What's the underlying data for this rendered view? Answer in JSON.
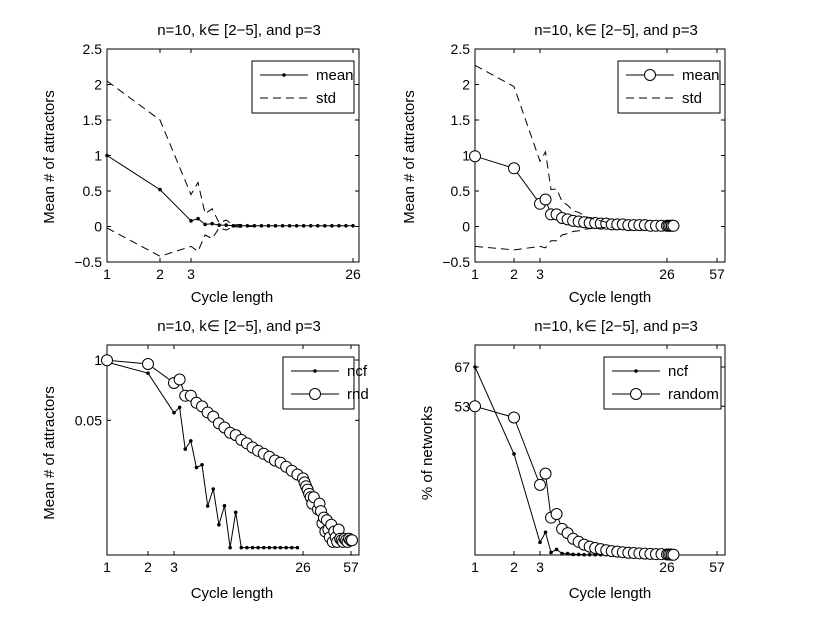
{
  "chart_data": [
    {
      "type": "line",
      "title": "n=10, k∈ [2−5], and p=3",
      "xlabel": "Cycle length",
      "ylabel": "Mean # of attractors",
      "xlim": [
        1,
        26
      ],
      "ylim": [
        -0.5,
        2.5
      ],
      "xticks": [
        "1",
        "2",
        "3",
        "26"
      ],
      "yticks": [
        "−0.5",
        "0",
        "0.5",
        "1",
        "1.5",
        "2",
        "2.5"
      ],
      "legend_position": "top-right",
      "series": [
        {
          "name": "mean",
          "style": "solid-dot",
          "x": [
            1,
            2,
            3,
            4,
            5,
            6,
            7,
            8,
            9,
            10,
            11,
            12,
            13,
            14,
            15,
            16,
            17,
            18,
            19,
            20,
            21,
            22,
            23,
            24,
            25,
            26
          ],
          "y": [
            1.0,
            0.52,
            0.08,
            0.11,
            0.03,
            0.04,
            0.02,
            0.02,
            0.01,
            0.01,
            0.01,
            0.01,
            0.01,
            0.01,
            0.01,
            0.01,
            0.01,
            0.01,
            0.01,
            0.01,
            0.01,
            0.01,
            0.01,
            0.01,
            0.01,
            0.01
          ]
        },
        {
          "name": "std",
          "style": "dashed",
          "x": [
            1,
            2,
            3,
            4,
            5,
            6,
            7,
            8,
            9,
            10,
            11,
            12
          ],
          "y": [
            2.05,
            1.5,
            0.45,
            0.62,
            0.18,
            0.25,
            0.05,
            0.09,
            0.02,
            0.03,
            0.01,
            0.0
          ]
        },
        {
          "name": "",
          "style": "dashed",
          "x": [
            1,
            2,
            3,
            4,
            5,
            6,
            7,
            8,
            9,
            10,
            11,
            12
          ],
          "y": [
            -0.02,
            -0.42,
            -0.28,
            -0.35,
            -0.12,
            -0.17,
            -0.02,
            -0.05,
            0.0,
            -0.01,
            0.0,
            0.0
          ]
        }
      ]
    },
    {
      "type": "line",
      "title": "n=10, k∈ [2−5], and p=3",
      "xlabel": "Cycle length",
      "ylabel": "Mean # of attractors",
      "xlim": [
        1,
        57
      ],
      "ylim": [
        -0.5,
        2.5
      ],
      "xticks": [
        "1",
        "2",
        "3",
        "26",
        "57"
      ],
      "yticks": [
        "−0.5",
        "0",
        "0.5",
        "1",
        "1.5",
        "2",
        "2.5"
      ],
      "legend_position": "top-right",
      "series": [
        {
          "name": "mean",
          "style": "solid-circle",
          "x": [
            1,
            2,
            3,
            4,
            5,
            6,
            7,
            8,
            9,
            10,
            11,
            12,
            13,
            14,
            15,
            16,
            17,
            18,
            19,
            20,
            21,
            22,
            23,
            24,
            25,
            26,
            27,
            28,
            29,
            30
          ],
          "y": [
            0.99,
            0.82,
            0.32,
            0.38,
            0.17,
            0.17,
            0.12,
            0.1,
            0.08,
            0.07,
            0.06,
            0.05,
            0.05,
            0.04,
            0.04,
            0.03,
            0.03,
            0.03,
            0.02,
            0.02,
            0.02,
            0.02,
            0.01,
            0.01,
            0.01,
            0.01,
            0.01,
            0.01,
            0.01,
            0.01
          ]
        },
        {
          "name": "std",
          "style": "dashed",
          "x": [
            1,
            2,
            3,
            4,
            5,
            6,
            7,
            8,
            9,
            10,
            11,
            12,
            13,
            14,
            15,
            16
          ],
          "y": [
            2.27,
            1.97,
            0.92,
            1.05,
            0.52,
            0.53,
            0.35,
            0.3,
            0.22,
            0.2,
            0.15,
            0.12,
            0.1,
            0.08,
            0.06,
            0.05
          ]
        },
        {
          "name": "",
          "style": "dashed",
          "x": [
            1,
            2,
            3,
            4,
            5,
            6,
            7,
            8,
            9,
            10,
            11,
            12,
            13,
            14,
            15,
            16
          ],
          "y": [
            -0.28,
            -0.33,
            -0.28,
            -0.3,
            -0.2,
            -0.2,
            -0.12,
            -0.1,
            -0.07,
            -0.06,
            -0.04,
            -0.03,
            -0.02,
            -0.02,
            -0.01,
            -0.01
          ]
        }
      ]
    },
    {
      "type": "line",
      "title": "n=10, k∈ [2−5], and p=3",
      "xlabel": "Cycle length",
      "ylabel": "Mean # of attractors",
      "xlim": [
        1,
        57
      ],
      "yscale": "log",
      "xticks": [
        "1",
        "2",
        "3",
        "26",
        "57"
      ],
      "yticks": [
        "1",
        "0.05"
      ],
      "legend_position": "top-right",
      "series": [
        {
          "name": "ncf",
          "style": "solid-dot",
          "x": [
            1,
            2,
            3,
            4,
            5,
            6,
            7,
            8,
            9,
            10,
            11,
            12,
            13,
            14,
            15,
            16,
            17,
            18,
            19,
            20,
            21,
            22,
            23,
            24,
            25
          ],
          "y": [
            0.9,
            0.52,
            0.073,
            0.095,
            0.012,
            0.018,
            0.0048,
            0.0055,
            0.00071,
            0.00165,
            0.00028,
            0.00072,
            9e-05,
            0.00052,
            9e-05,
            9e-05,
            9e-05,
            9e-05,
            9e-05,
            9e-05,
            9e-05,
            9e-05,
            9e-05,
            9e-05,
            9e-05
          ]
        },
        {
          "name": "rnd",
          "style": "solid-circle",
          "x": [
            1,
            2,
            3,
            4,
            5,
            6,
            7,
            8,
            9,
            10,
            11,
            12,
            13,
            14,
            15,
            16,
            17,
            18,
            19,
            20,
            21,
            22,
            23,
            24,
            25,
            26,
            27,
            28,
            29,
            30,
            31,
            32,
            33,
            34,
            35,
            36,
            37,
            38,
            39,
            40,
            41,
            42,
            43,
            44,
            45,
            46,
            47,
            48,
            49,
            50,
            51,
            52,
            53,
            54,
            55,
            56,
            57
          ],
          "y": [
            0.99,
            0.82,
            0.32,
            0.38,
            0.17,
            0.17,
            0.12,
            0.1,
            0.074,
            0.06,
            0.043,
            0.035,
            0.027,
            0.024,
            0.019,
            0.016,
            0.013,
            0.011,
            0.0095,
            0.0082,
            0.0068,
            0.0061,
            0.005,
            0.0041,
            0.0034,
            0.0028,
            0.0023,
            0.0019,
            0.0016,
            0.0013,
            0.0011,
            0.0008,
            0.0011,
            0.0006,
            0.0008,
            0.00055,
            0.0003,
            0.0004,
            0.0002,
            0.00035,
            0.00022,
            0.00015,
            0.00028,
            0.00012,
            0.0002,
            0.00015,
            0.00012,
            0.00022,
            0.00014,
            0.00013,
            0.00012,
            0.00014,
            0.00013,
            0.00012,
            0.00014,
            0.00013,
            0.00013
          ]
        }
      ]
    },
    {
      "type": "line",
      "title": "n=10, k∈ [2−5], and p=3",
      "xlabel": "Cycle length",
      "ylabel": "% of networks",
      "xlim": [
        1,
        57
      ],
      "ylim": [
        0,
        67
      ],
      "xticks": [
        "1",
        "2",
        "3",
        "26",
        "57"
      ],
      "yticks": [
        "67",
        "53"
      ],
      "legend_position": "top-right",
      "series": [
        {
          "name": "ncf",
          "style": "solid-dot",
          "x": [
            1,
            2,
            3,
            4,
            5,
            6,
            7,
            8,
            9,
            10,
            11,
            12,
            13,
            14,
            15,
            16,
            17,
            18,
            19,
            20,
            21,
            22,
            23,
            24,
            25,
            26,
            27,
            28,
            29,
            30
          ],
          "y": [
            67,
            36,
            4.5,
            8.1,
            0.9,
            2.0,
            0.5,
            0.5,
            0.2,
            0.2,
            0.1,
            0.1,
            0.1,
            0.1,
            0.1,
            0.1,
            0.1,
            0.1,
            0.1,
            0.1,
            0.1,
            0.1,
            0.1,
            0.1,
            0.1,
            0.1,
            0.1,
            0.1,
            0.1,
            0.1
          ]
        },
        {
          "name": "random",
          "style": "solid-circle",
          "x": [
            1,
            2,
            3,
            4,
            5,
            6,
            7,
            8,
            9,
            10,
            11,
            12,
            13,
            14,
            15,
            16,
            17,
            18,
            19,
            20,
            21,
            22,
            23,
            24,
            25,
            26,
            27,
            28,
            29,
            30
          ],
          "y": [
            53,
            49,
            25,
            29,
            13.3,
            14.6,
            9.3,
            7.8,
            5.8,
            4.7,
            3.7,
            3.0,
            2.5,
            2.1,
            1.7,
            1.4,
            1.2,
            1.0,
            0.8,
            0.7,
            0.6,
            0.5,
            0.4,
            0.3,
            0.3,
            0.2,
            0.2,
            0.2,
            0.1,
            0.1
          ]
        }
      ]
    }
  ]
}
